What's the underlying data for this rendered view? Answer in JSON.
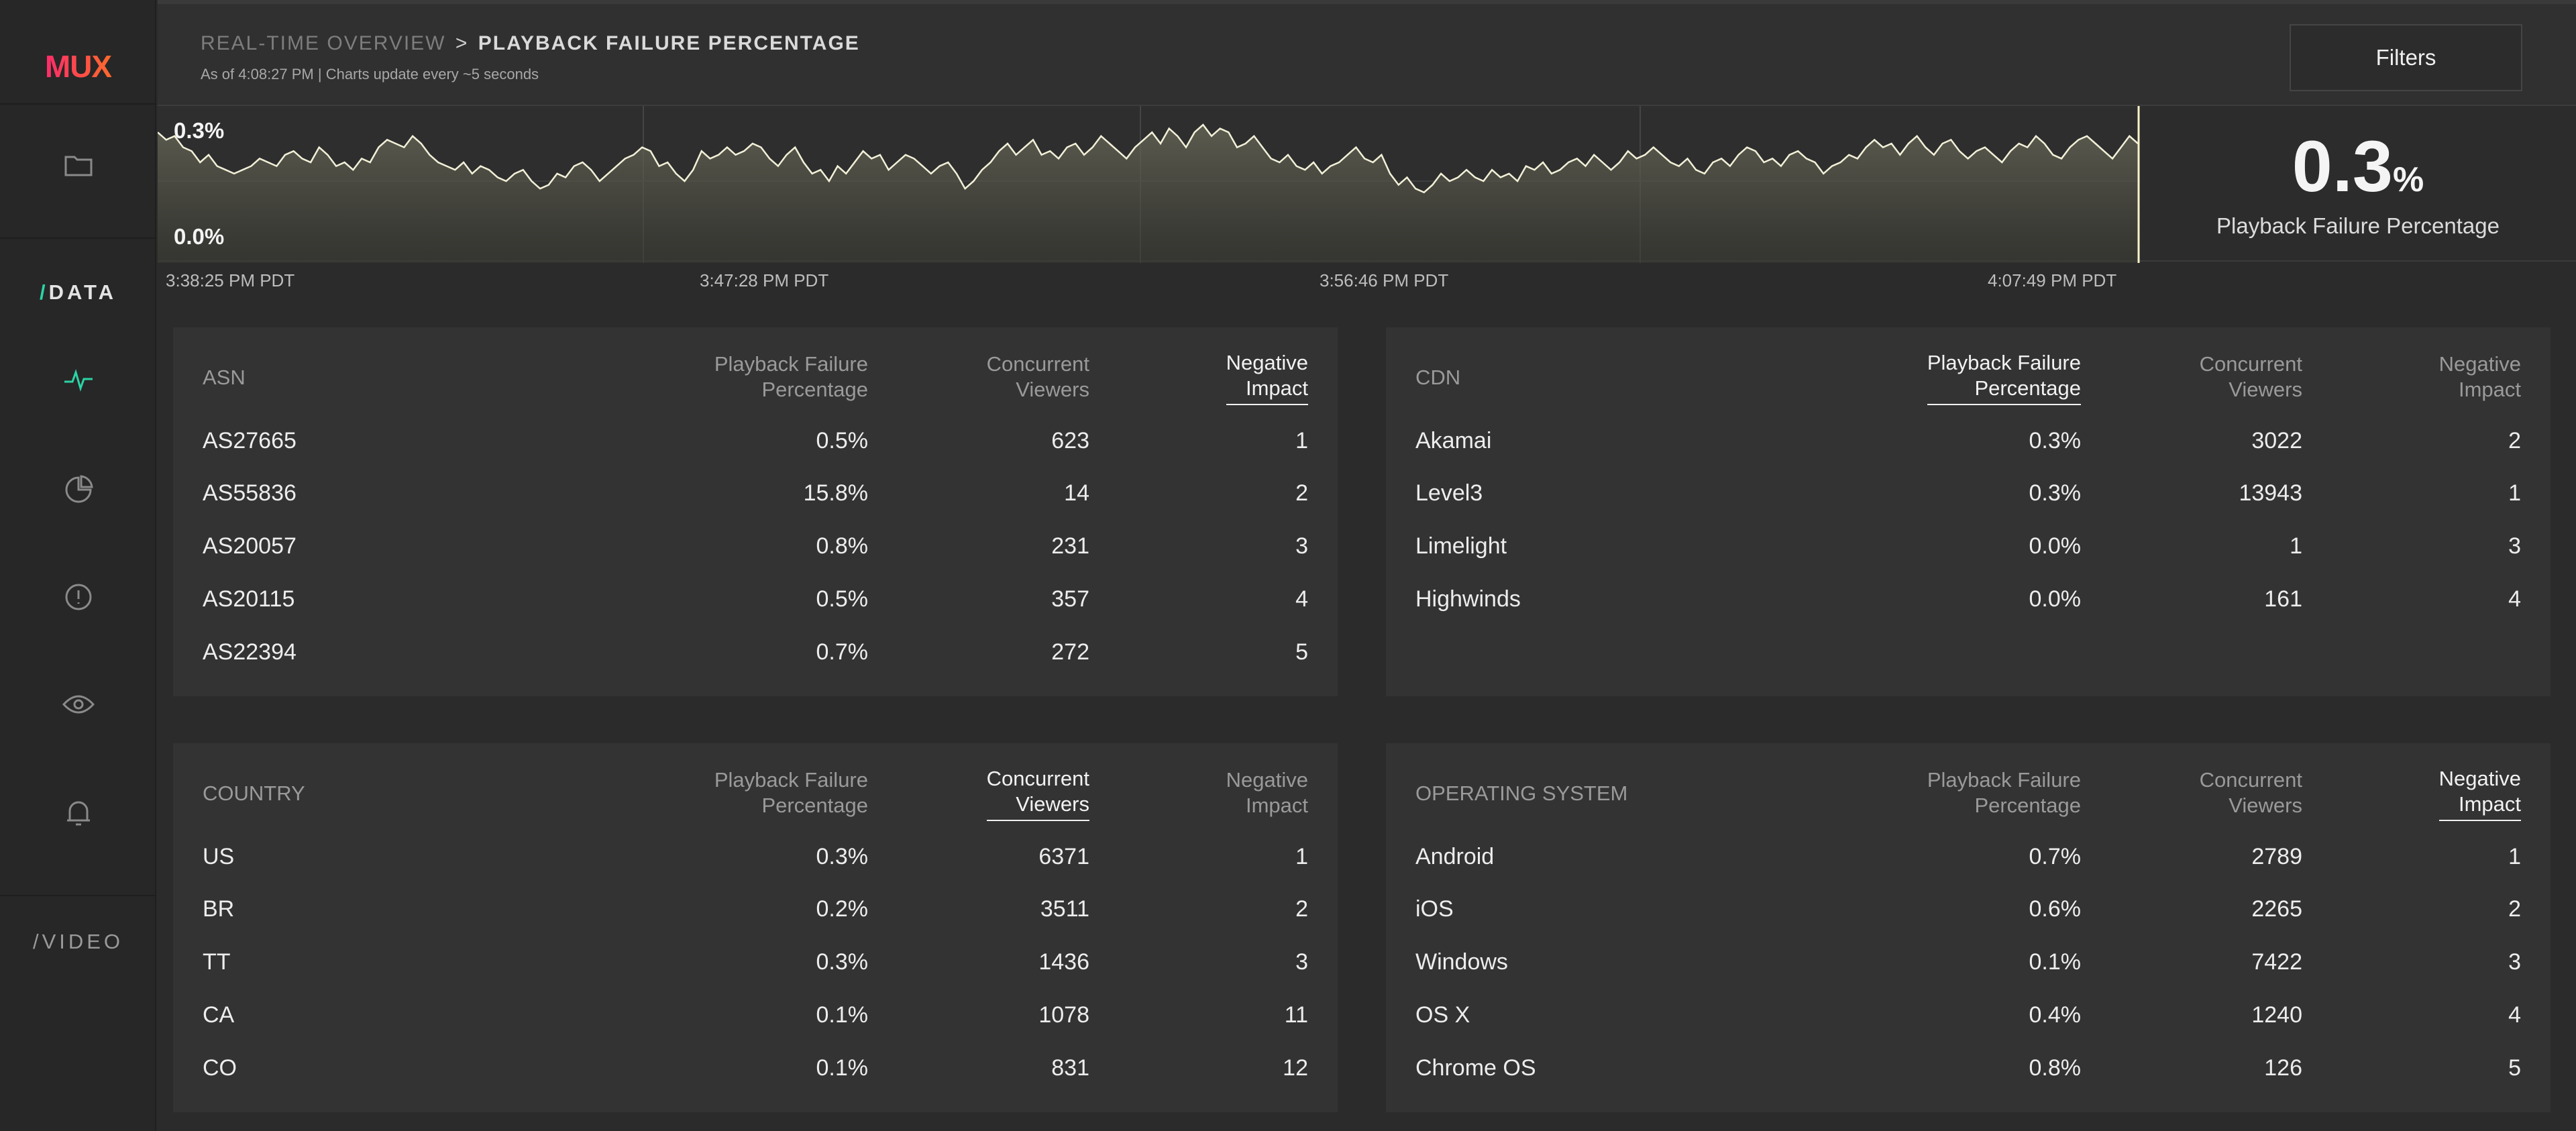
{
  "sidebar": {
    "logo": "MUX",
    "data_label": "DATA",
    "video_label": "VIDEO",
    "slash": "/"
  },
  "header": {
    "breadcrumb_parent": "REAL-TIME OVERVIEW",
    "breadcrumb_sep": ">",
    "breadcrumb_current": "PLAYBACK FAILURE PERCENTAGE",
    "subtitle": "As of 4:08:27 PM | Charts update every ~5 seconds",
    "filters_label": "Filters"
  },
  "chart_data": {
    "type": "area",
    "y_top_label": "0.3%",
    "y_bottom_label": "0.0%",
    "ylim": [
      0.0,
      0.3
    ],
    "x_labels": [
      "3:38:25 PM PDT",
      "3:47:28 PM PDT",
      "3:56:46 PM PDT",
      "4:07:49 PM PDT"
    ],
    "values": [
      0.28,
      0.26,
      0.27,
      0.24,
      0.23,
      0.2,
      0.22,
      0.19,
      0.18,
      0.17,
      0.18,
      0.19,
      0.21,
      0.2,
      0.19,
      0.22,
      0.23,
      0.21,
      0.2,
      0.24,
      0.22,
      0.19,
      0.2,
      0.18,
      0.21,
      0.2,
      0.24,
      0.26,
      0.25,
      0.24,
      0.27,
      0.25,
      0.22,
      0.2,
      0.19,
      0.18,
      0.2,
      0.17,
      0.19,
      0.18,
      0.16,
      0.15,
      0.17,
      0.18,
      0.15,
      0.13,
      0.14,
      0.17,
      0.16,
      0.19,
      0.2,
      0.18,
      0.15,
      0.17,
      0.19,
      0.21,
      0.22,
      0.24,
      0.23,
      0.19,
      0.2,
      0.17,
      0.15,
      0.18,
      0.23,
      0.21,
      0.22,
      0.24,
      0.22,
      0.23,
      0.25,
      0.24,
      0.21,
      0.19,
      0.22,
      0.24,
      0.2,
      0.17,
      0.18,
      0.15,
      0.19,
      0.17,
      0.2,
      0.23,
      0.21,
      0.22,
      0.18,
      0.2,
      0.22,
      0.21,
      0.19,
      0.17,
      0.19,
      0.2,
      0.17,
      0.13,
      0.15,
      0.18,
      0.2,
      0.23,
      0.25,
      0.22,
      0.24,
      0.26,
      0.22,
      0.23,
      0.21,
      0.24,
      0.25,
      0.22,
      0.24,
      0.27,
      0.25,
      0.23,
      0.21,
      0.24,
      0.26,
      0.28,
      0.25,
      0.29,
      0.27,
      0.24,
      0.28,
      0.3,
      0.27,
      0.29,
      0.28,
      0.24,
      0.25,
      0.27,
      0.24,
      0.21,
      0.2,
      0.22,
      0.19,
      0.18,
      0.2,
      0.17,
      0.19,
      0.2,
      0.22,
      0.24,
      0.21,
      0.2,
      0.22,
      0.17,
      0.14,
      0.16,
      0.13,
      0.12,
      0.14,
      0.17,
      0.15,
      0.16,
      0.18,
      0.16,
      0.15,
      0.18,
      0.16,
      0.17,
      0.15,
      0.19,
      0.18,
      0.2,
      0.17,
      0.18,
      0.2,
      0.21,
      0.19,
      0.22,
      0.2,
      0.18,
      0.2,
      0.23,
      0.21,
      0.22,
      0.24,
      0.22,
      0.2,
      0.19,
      0.21,
      0.18,
      0.17,
      0.2,
      0.21,
      0.19,
      0.22,
      0.24,
      0.23,
      0.2,
      0.21,
      0.19,
      0.22,
      0.23,
      0.21,
      0.2,
      0.17,
      0.19,
      0.2,
      0.22,
      0.21,
      0.24,
      0.26,
      0.24,
      0.25,
      0.22,
      0.25,
      0.27,
      0.24,
      0.22,
      0.25,
      0.26,
      0.23,
      0.21,
      0.23,
      0.24,
      0.22,
      0.2,
      0.23,
      0.25,
      0.24,
      0.27,
      0.25,
      0.22,
      0.21,
      0.24,
      0.26,
      0.27,
      0.25,
      0.23,
      0.21,
      0.24,
      0.27,
      0.25
    ]
  },
  "stat": {
    "value": "0.3",
    "unit": "%",
    "label": "Playback Failure Percentage"
  },
  "tables": {
    "asn": {
      "dim_header": "ASN",
      "col1": "Playback Failure Percentage",
      "col2": "Concurrent Viewers",
      "col3": "Negative Impact",
      "rows": [
        {
          "name": "AS27665",
          "pfp": "0.5%",
          "viewers": "623",
          "impact": "1"
        },
        {
          "name": "AS55836",
          "pfp": "15.8%",
          "viewers": "14",
          "impact": "2"
        },
        {
          "name": "AS20057",
          "pfp": "0.8%",
          "viewers": "231",
          "impact": "3"
        },
        {
          "name": "AS20115",
          "pfp": "0.5%",
          "viewers": "357",
          "impact": "4"
        },
        {
          "name": "AS22394",
          "pfp": "0.7%",
          "viewers": "272",
          "impact": "5"
        }
      ]
    },
    "cdn": {
      "dim_header": "CDN",
      "col1": "Playback Failure Percentage",
      "col2": "Concurrent Viewers",
      "col3": "Negative Impact",
      "rows": [
        {
          "name": "Akamai",
          "pfp": "0.3%",
          "viewers": "3022",
          "impact": "2"
        },
        {
          "name": "Level3",
          "pfp": "0.3%",
          "viewers": "13943",
          "impact": "1"
        },
        {
          "name": "Limelight",
          "pfp": "0.0%",
          "viewers": "1",
          "impact": "3"
        },
        {
          "name": "Highwinds",
          "pfp": "0.0%",
          "viewers": "161",
          "impact": "4"
        }
      ]
    },
    "country": {
      "dim_header": "COUNTRY",
      "col1": "Playback Failure Percentage",
      "col2": "Concurrent Viewers",
      "col3": "Negative Impact",
      "rows": [
        {
          "name": "US",
          "pfp": "0.3%",
          "viewers": "6371",
          "impact": "1"
        },
        {
          "name": "BR",
          "pfp": "0.2%",
          "viewers": "3511",
          "impact": "2"
        },
        {
          "name": "TT",
          "pfp": "0.3%",
          "viewers": "1436",
          "impact": "3"
        },
        {
          "name": "CA",
          "pfp": "0.1%",
          "viewers": "1078",
          "impact": "11"
        },
        {
          "name": "CO",
          "pfp": "0.1%",
          "viewers": "831",
          "impact": "12"
        }
      ]
    },
    "os": {
      "dim_header": "OPERATING SYSTEM",
      "col1": "Playback Failure Percentage",
      "col2": "Concurrent Viewers",
      "col3": "Negative Impact",
      "rows": [
        {
          "name": "Android",
          "pfp": "0.7%",
          "viewers": "2789",
          "impact": "1"
        },
        {
          "name": "iOS",
          "pfp": "0.6%",
          "viewers": "2265",
          "impact": "2"
        },
        {
          "name": "Windows",
          "pfp": "0.1%",
          "viewers": "7422",
          "impact": "3"
        },
        {
          "name": "OS X",
          "pfp": "0.4%",
          "viewers": "1240",
          "impact": "4"
        },
        {
          "name": "Chrome OS",
          "pfp": "0.8%",
          "viewers": "126",
          "impact": "5"
        }
      ]
    }
  }
}
